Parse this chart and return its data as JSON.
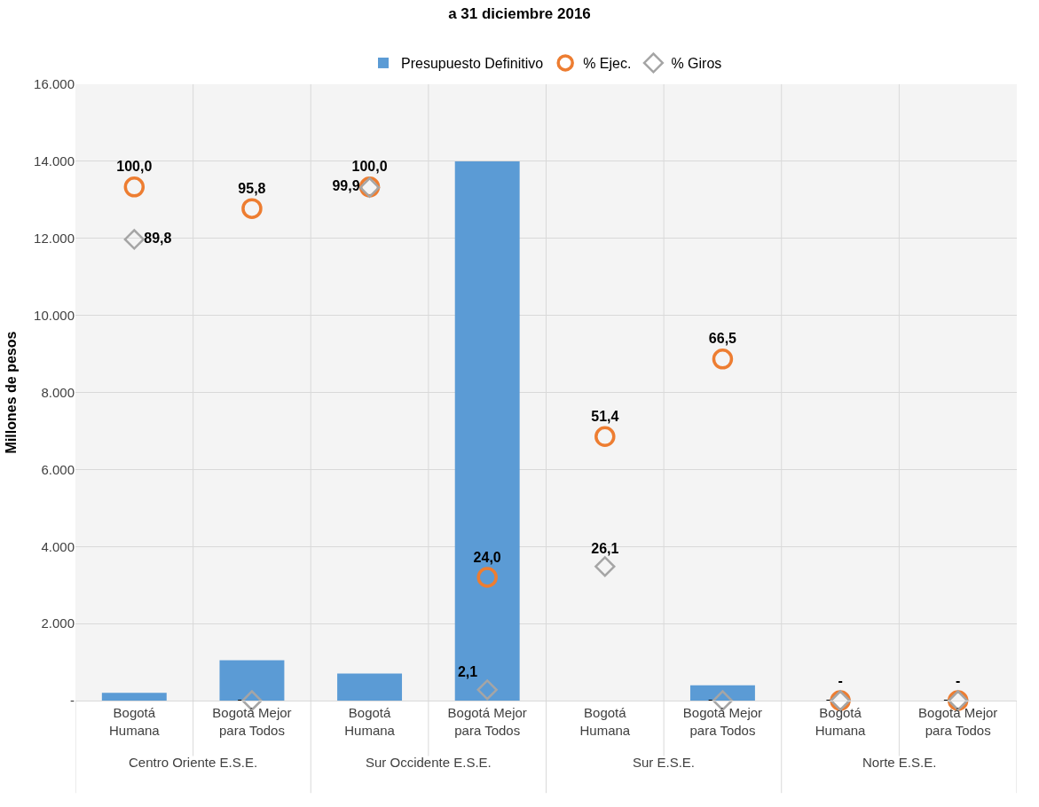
{
  "chart_data": {
    "type": "bar",
    "title": "a 31 diciembre 2016",
    "ylabel": "Millones de pesos",
    "categories": [
      [
        "Centro Oriente E.S.E.",
        "Bogotá Humana"
      ],
      [
        null,
        "Bogotá Mejor para Todos"
      ],
      [
        "Sur Occidente E.S.E.",
        "Bogotá Humana"
      ],
      [
        null,
        "Bogotá Mejor para Todos"
      ],
      [
        "Sur E.S.E.",
        "Bogotá Humana"
      ],
      [
        null,
        "Bogotá Mejor para Todos"
      ],
      [
        "Norte E.S.E.",
        "Bogotá Humana"
      ],
      [
        null,
        "Bogotá Mejor para Todos"
      ]
    ],
    "series": [
      {
        "name": "Presupuesto Definitivo",
        "color": "#5b9bd5",
        "values": [
          200,
          1050,
          700,
          14000,
          0,
          400,
          0,
          0
        ]
      },
      {
        "name": "% Ejec.",
        "type": "scatter",
        "axis": "y2",
        "marker": "circle",
        "color": "#ed7d31",
        "values": [
          100.0,
          95.8,
          100.0,
          24.0,
          51.4,
          66.5,
          0,
          0
        ],
        "value_labels": [
          "100,0",
          "95,8",
          "100,0",
          "24,0",
          "51,4",
          "66,5",
          "-",
          "-"
        ]
      },
      {
        "name": "% Giros",
        "type": "scatter",
        "axis": "y2",
        "marker": "diamond",
        "color": "#a5a5a5",
        "values": [
          89.8,
          0,
          99.9,
          2.1,
          26.1,
          0,
          0,
          0
        ],
        "value_labels": [
          "89,8",
          "-",
          "99,9",
          "2,1",
          "26,1",
          "-",
          "-",
          "-"
        ]
      }
    ],
    "ylim": [
      0,
      16000
    ],
    "yticks": [
      {
        "value": 0,
        "label": "-"
      },
      {
        "value": 2000,
        "label": "2.000"
      },
      {
        "value": 4000,
        "label": "4.000"
      },
      {
        "value": 6000,
        "label": "6.000"
      },
      {
        "value": 8000,
        "label": "8.000"
      },
      {
        "value": 10000,
        "label": "10.000"
      },
      {
        "value": 12000,
        "label": "12.000"
      },
      {
        "value": 14000,
        "label": "14.000"
      },
      {
        "value": 16000,
        "label": "16.000"
      }
    ],
    "y2lim": [
      0,
      120
    ],
    "grid": true,
    "legend": "top"
  }
}
